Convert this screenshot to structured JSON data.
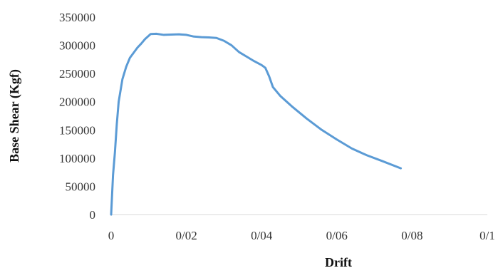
{
  "chart_data": {
    "type": "line",
    "xlabel": "Drift",
    "ylabel": "Base Shear (Kgf)",
    "xlim": [
      0,
      0.1
    ],
    "ylim": [
      0,
      350000
    ],
    "x_ticks": [
      0,
      0.02,
      0.04,
      0.06,
      0.08,
      0.1
    ],
    "x_tick_labels": [
      "0",
      "0/02",
      "0/04",
      "0/06",
      "0/08",
      "0/1"
    ],
    "y_ticks": [
      0,
      50000,
      100000,
      150000,
      200000,
      250000,
      300000,
      350000
    ],
    "y_tick_labels": [
      "0",
      "50000",
      "100000",
      "150000",
      "200000",
      "250000",
      "300000",
      "350000"
    ],
    "grid": false,
    "legend": "none",
    "series": [
      {
        "color": "#5B9BD5",
        "points": [
          [
            0,
            0
          ],
          [
            0.0005,
            70000
          ],
          [
            0.001,
            110000
          ],
          [
            0.0015,
            160000
          ],
          [
            0.002,
            200000
          ],
          [
            0.003,
            240000
          ],
          [
            0.004,
            262000
          ],
          [
            0.005,
            278000
          ],
          [
            0.006,
            287000
          ],
          [
            0.007,
            296000
          ],
          [
            0.008,
            303000
          ],
          [
            0.009,
            311000
          ],
          [
            0.0105,
            320000
          ],
          [
            0.012,
            320500
          ],
          [
            0.014,
            318500
          ],
          [
            0.016,
            319000
          ],
          [
            0.018,
            319500
          ],
          [
            0.02,
            318500
          ],
          [
            0.022,
            315500
          ],
          [
            0.024,
            314500
          ],
          [
            0.026,
            314000
          ],
          [
            0.028,
            313000
          ],
          [
            0.03,
            308000
          ],
          [
            0.032,
            300000
          ],
          [
            0.034,
            288000
          ],
          [
            0.036,
            280000
          ],
          [
            0.038,
            272000
          ],
          [
            0.04,
            265000
          ],
          [
            0.041,
            260000
          ],
          [
            0.042,
            245000
          ],
          [
            0.043,
            226000
          ],
          [
            0.045,
            210000
          ],
          [
            0.048,
            192000
          ],
          [
            0.052,
            170000
          ],
          [
            0.056,
            150000
          ],
          [
            0.06,
            133000
          ],
          [
            0.064,
            117000
          ],
          [
            0.068,
            105000
          ],
          [
            0.072,
            95000
          ],
          [
            0.077,
            82000
          ]
        ]
      }
    ]
  }
}
